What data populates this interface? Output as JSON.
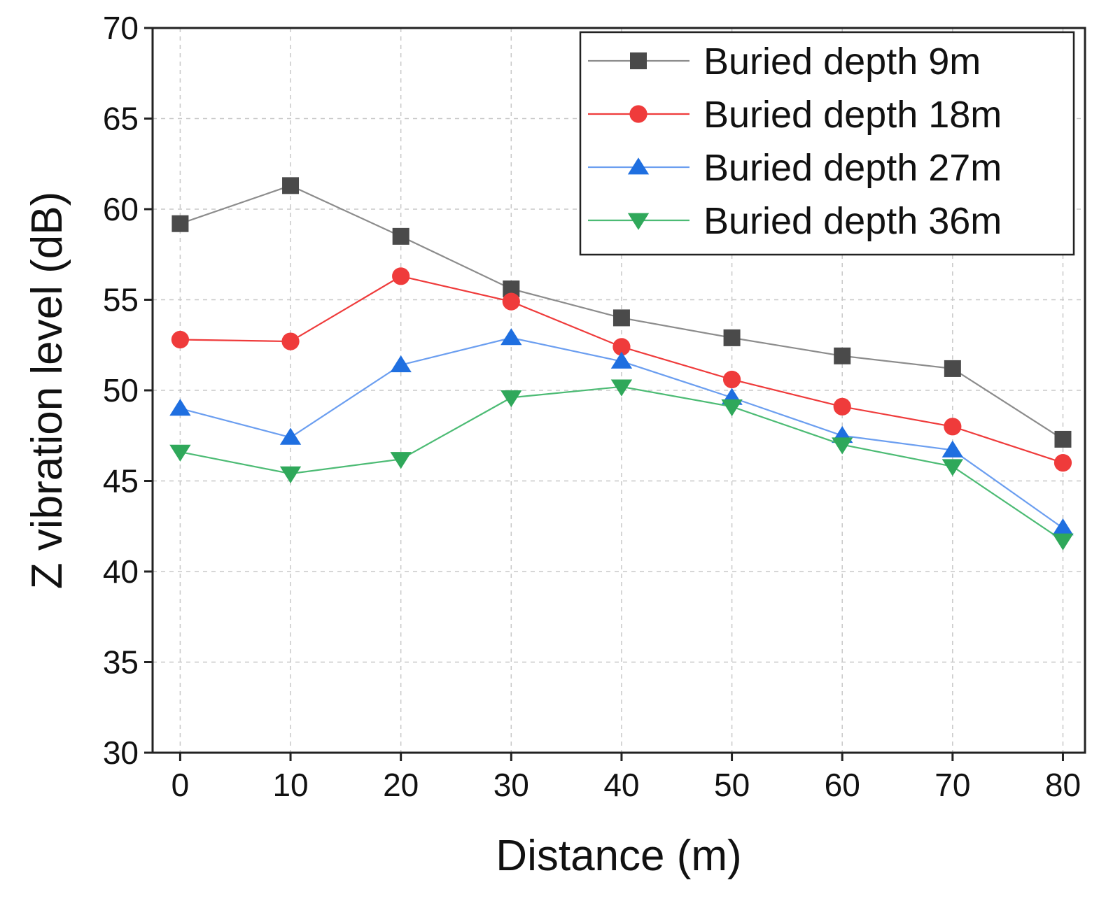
{
  "chart_data": {
    "type": "line",
    "title": "",
    "xlabel": "Distance (m)",
    "ylabel": "Z vibration level (dB)",
    "xlim": [
      -2.5,
      82
    ],
    "ylim": [
      30,
      70
    ],
    "xticks": [
      0,
      10,
      20,
      30,
      40,
      50,
      60,
      70,
      80
    ],
    "yticks": [
      30,
      35,
      40,
      45,
      50,
      55,
      60,
      65,
      70
    ],
    "grid": true,
    "legend_position": "top-right",
    "x": [
      0,
      10,
      20,
      30,
      40,
      50,
      60,
      70,
      80
    ],
    "series": [
      {
        "name": "Buried depth 9m",
        "marker": "square",
        "marker_color": "#4a4a4a",
        "line_color": "#8c8c8c",
        "values": [
          59.2,
          61.3,
          58.5,
          55.6,
          54.0,
          52.9,
          51.9,
          51.2,
          47.3
        ]
      },
      {
        "name": "Buried depth 18m",
        "marker": "circle",
        "marker_color": "#ef3b3b",
        "line_color": "#ef3b3b",
        "values": [
          52.8,
          52.7,
          56.3,
          54.9,
          52.4,
          50.6,
          49.1,
          48.0,
          46.0
        ]
      },
      {
        "name": "Buried depth 27m",
        "marker": "triangle-up",
        "marker_color": "#1f6fe0",
        "line_color": "#6b9ef0",
        "values": [
          49.0,
          47.4,
          51.4,
          52.9,
          51.6,
          49.6,
          47.5,
          46.7,
          42.4
        ]
      },
      {
        "name": "Buried depth 36m",
        "marker": "triangle-down",
        "marker_color": "#2fa85a",
        "line_color": "#4cbb74",
        "values": [
          46.6,
          45.4,
          46.2,
          49.6,
          50.2,
          49.1,
          47.0,
          45.8,
          41.7
        ]
      }
    ]
  }
}
